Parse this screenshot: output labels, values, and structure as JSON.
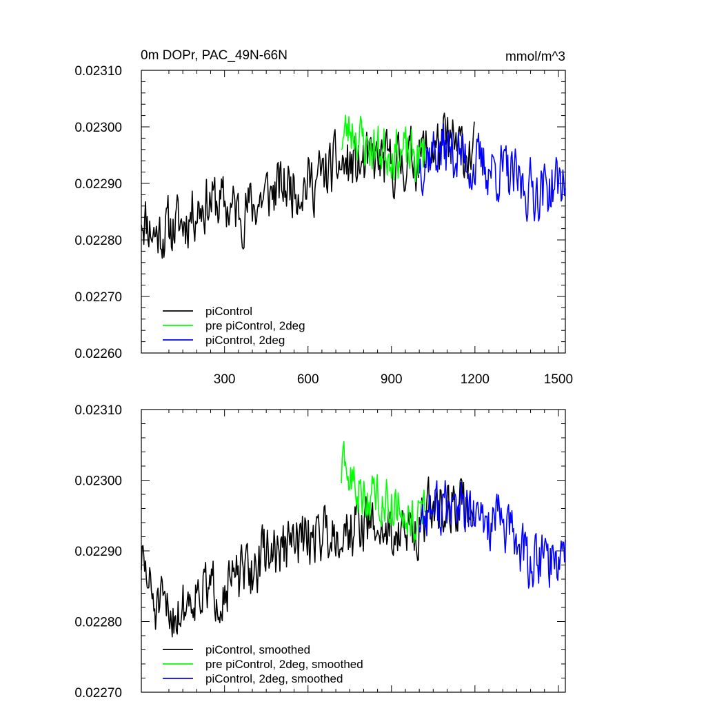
{
  "chart_data": [
    {
      "type": "line",
      "title": "0m DOPr, PAC_49N-66N",
      "units": "mmol/m^3",
      "xlim": [
        1,
        1525
      ],
      "ylim": [
        0.0226,
        0.0231
      ],
      "xticks": [
        300,
        600,
        900,
        1200,
        1500
      ],
      "xtick_labels": [
        "300",
        "600",
        "900",
        "1200",
        "1500"
      ],
      "yticks": [
        0.0226,
        0.0227,
        0.0228,
        0.0229,
        0.023,
        0.0231
      ],
      "ytick_labels": [
        "0.02260",
        "0.02270",
        "0.02280",
        "0.02290",
        "0.02300",
        "0.02310"
      ],
      "legend_position": "bottom-left",
      "series": [
        {
          "name": "piControl",
          "color": "#000000",
          "x_range": [
            1,
            1200
          ],
          "x_step": 3,
          "anchors": [
            [
              1,
              0.02285
            ],
            [
              50,
              0.02281
            ],
            [
              100,
              0.02282
            ],
            [
              150,
              0.02283
            ],
            [
              200,
              0.02286
            ],
            [
              250,
              0.02287
            ],
            [
              300,
              0.02286
            ],
            [
              350,
              0.02285
            ],
            [
              400,
              0.02286
            ],
            [
              450,
              0.02288
            ],
            [
              500,
              0.02289
            ],
            [
              550,
              0.0229
            ],
            [
              600,
              0.0229
            ],
            [
              650,
              0.02291
            ],
            [
              700,
              0.02293
            ],
            [
              750,
              0.02293
            ],
            [
              800,
              0.02293
            ],
            [
              850,
              0.02294
            ],
            [
              900,
              0.02293
            ],
            [
              950,
              0.02294
            ],
            [
              1000,
              0.02295
            ],
            [
              1050,
              0.02296
            ],
            [
              1100,
              0.02297
            ],
            [
              1150,
              0.02296
            ],
            [
              1200,
              0.02295
            ]
          ],
          "amp": 4.5e-05,
          "seed": 11
        },
        {
          "name": "pre piControl, 2deg",
          "color": "#00ff00",
          "x_range": [
            720,
            1020
          ],
          "x_step": 3,
          "anchors": [
            [
              720,
              0.02298
            ],
            [
              760,
              0.023
            ],
            [
              800,
              0.02297
            ],
            [
              850,
              0.02296
            ],
            [
              900,
              0.02296
            ],
            [
              950,
              0.02295
            ],
            [
              1000,
              0.02294
            ],
            [
              1020,
              0.02296
            ]
          ],
          "amp": 4e-05,
          "seed": 23
        },
        {
          "name": "piControl, 2deg",
          "color": "#0000ff",
          "x_range": [
            1000,
            1525
          ],
          "x_step": 3,
          "anchors": [
            [
              1000,
              0.02294
            ],
            [
              1050,
              0.02296
            ],
            [
              1100,
              0.02296
            ],
            [
              1150,
              0.02295
            ],
            [
              1200,
              0.02293
            ],
            [
              1250,
              0.02293
            ],
            [
              1300,
              0.02292
            ],
            [
              1350,
              0.0229
            ],
            [
              1400,
              0.02289
            ],
            [
              1450,
              0.02289
            ],
            [
              1500,
              0.0229
            ],
            [
              1525,
              0.02291
            ]
          ],
          "amp": 4.5e-05,
          "seed": 37
        }
      ]
    },
    {
      "type": "line",
      "xlim": [
        1,
        1525
      ],
      "ylim": [
        0.0227,
        0.0231
      ],
      "xticks": [
        300,
        600,
        900,
        1200,
        1500
      ],
      "yticks": [
        0.0227,
        0.0228,
        0.0229,
        0.023,
        0.0231
      ],
      "ytick_labels": [
        "0.02270",
        "0.02280",
        "0.02290",
        "0.02300",
        "0.02310"
      ],
      "legend_position": "bottom-left",
      "series": [
        {
          "name": "piControl, smoothed",
          "color": "#000000",
          "x_range": [
            1,
            1200
          ],
          "x_step": 3,
          "anchors": [
            [
              1,
              0.02289
            ],
            [
              50,
              0.02282
            ],
            [
              100,
              0.02281
            ],
            [
              150,
              0.02282
            ],
            [
              200,
              0.02285
            ],
            [
              250,
              0.02284
            ],
            [
              300,
              0.02285
            ],
            [
              350,
              0.02286
            ],
            [
              400,
              0.02287
            ],
            [
              450,
              0.0229
            ],
            [
              500,
              0.0229
            ],
            [
              550,
              0.02291
            ],
            [
              600,
              0.02292
            ],
            [
              650,
              0.02293
            ],
            [
              700,
              0.02293
            ],
            [
              750,
              0.02293
            ],
            [
              800,
              0.02294
            ],
            [
              850,
              0.02293
            ],
            [
              900,
              0.02293
            ],
            [
              950,
              0.02292
            ],
            [
              1000,
              0.02294
            ],
            [
              1050,
              0.02296
            ],
            [
              1100,
              0.02297
            ],
            [
              1150,
              0.02296
            ],
            [
              1200,
              0.02296
            ]
          ],
          "amp": 3.5e-05,
          "seed": 51
        },
        {
          "name": "pre piControl, 2deg, smoothed",
          "color": "#00ff00",
          "x_range": [
            720,
            1020
          ],
          "x_step": 3,
          "anchors": [
            [
              720,
              0.02301
            ],
            [
              760,
              0.023
            ],
            [
              800,
              0.02297
            ],
            [
              850,
              0.02298
            ],
            [
              900,
              0.02297
            ],
            [
              950,
              0.02296
            ],
            [
              1000,
              0.02294
            ],
            [
              1020,
              0.02296
            ]
          ],
          "amp": 3e-05,
          "seed": 63
        },
        {
          "name": "piControl, 2deg, smoothed",
          "color": "#0000ff",
          "x_range": [
            1000,
            1525
          ],
          "x_step": 3,
          "anchors": [
            [
              1000,
              0.02295
            ],
            [
              1050,
              0.02296
            ],
            [
              1100,
              0.02296
            ],
            [
              1150,
              0.02296
            ],
            [
              1200,
              0.02294
            ],
            [
              1250,
              0.02294
            ],
            [
              1300,
              0.02294
            ],
            [
              1350,
              0.02291
            ],
            [
              1400,
              0.02288
            ],
            [
              1450,
              0.02289
            ],
            [
              1500,
              0.02289
            ],
            [
              1525,
              0.02292
            ]
          ],
          "amp": 3.5e-05,
          "seed": 77
        }
      ]
    }
  ]
}
